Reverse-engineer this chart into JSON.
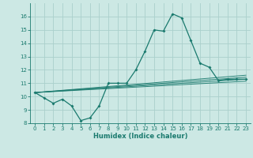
{
  "title": "",
  "xlabel": "Humidex (Indice chaleur)",
  "background_color": "#cce8e4",
  "grid_color": "#aad0cc",
  "line_color": "#1a7a6e",
  "xlim": [
    -0.5,
    23.5
  ],
  "ylim": [
    8,
    17
  ],
  "xticks": [
    0,
    1,
    2,
    3,
    4,
    5,
    6,
    7,
    8,
    9,
    10,
    11,
    12,
    13,
    14,
    15,
    16,
    17,
    18,
    19,
    20,
    21,
    22,
    23
  ],
  "yticks": [
    8,
    9,
    10,
    11,
    12,
    13,
    14,
    15,
    16
  ],
  "series1": {
    "x": [
      0,
      1,
      2,
      3,
      4,
      5,
      6,
      7,
      8,
      9,
      10,
      11,
      12,
      13,
      14,
      15,
      16,
      17,
      18,
      19,
      20,
      21,
      22,
      23
    ],
    "y": [
      10.3,
      9.9,
      9.5,
      9.8,
      9.3,
      8.2,
      8.4,
      9.3,
      11.0,
      11.0,
      11.0,
      12.0,
      13.4,
      15.0,
      14.9,
      16.2,
      15.9,
      14.2,
      12.5,
      12.2,
      11.2,
      11.3,
      11.3,
      11.3
    ]
  },
  "fan_lines": [
    {
      "x": [
        0,
        23
      ],
      "y": [
        10.3,
        11.3
      ]
    },
    {
      "x": [
        0,
        23
      ],
      "y": [
        10.3,
        11.15
      ]
    },
    {
      "x": [
        0,
        23
      ],
      "y": [
        10.3,
        11.45
      ]
    },
    {
      "x": [
        0,
        23
      ],
      "y": [
        10.3,
        11.6
      ]
    }
  ],
  "xlabel_fontsize": 6,
  "tick_fontsize": 5
}
